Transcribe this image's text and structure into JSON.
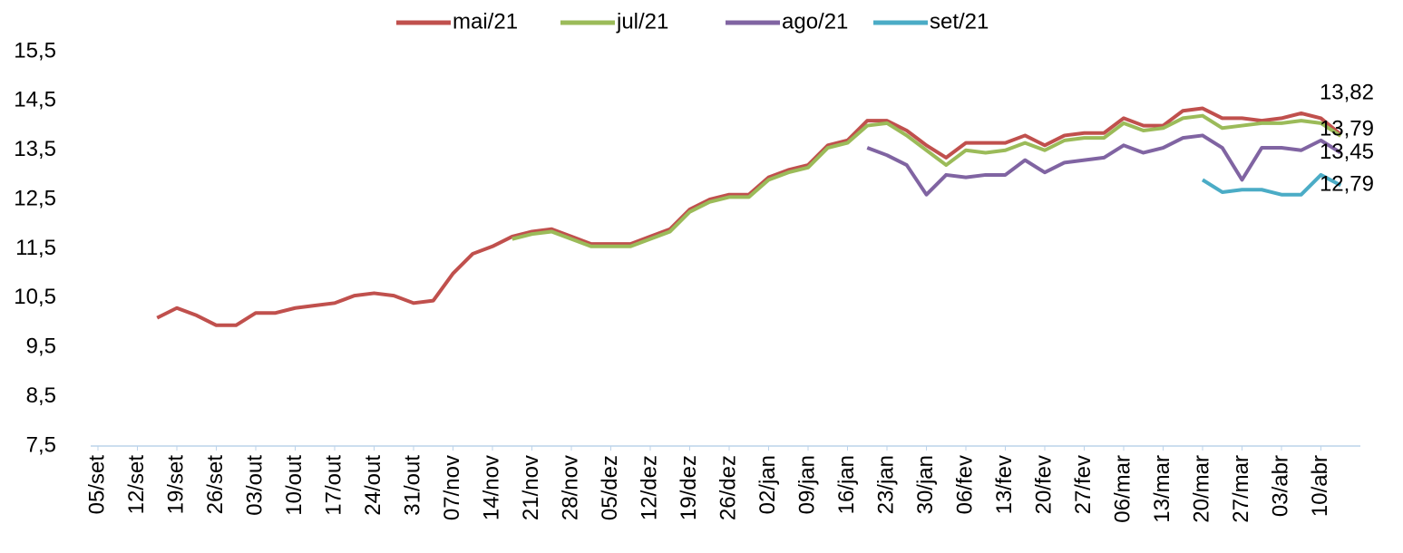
{
  "chart_data": {
    "type": "line",
    "categories": [
      "05/set",
      null,
      "12/set",
      null,
      "19/set",
      null,
      "26/set",
      null,
      "03/out",
      null,
      "10/out",
      null,
      "17/out",
      null,
      "24/out",
      null,
      "31/out",
      null,
      "07/nov",
      null,
      "14/nov",
      null,
      "21/nov",
      null,
      "28/nov",
      null,
      "05/dez",
      null,
      "12/dez",
      null,
      "19/dez",
      null,
      "26/dez",
      null,
      "02/jan",
      null,
      "09/jan",
      null,
      "16/jan",
      null,
      "23/jan",
      null,
      "30/jan",
      null,
      "06/fev",
      null,
      "13/fev",
      null,
      "20/fev",
      null,
      "27/fev",
      null,
      "06/mar",
      null,
      "13/mar",
      null,
      "20/mar",
      null,
      "27/mar",
      null,
      "03/abr",
      null,
      "10/abr",
      null
    ],
    "series": [
      {
        "name": "mai/21",
        "color": "#c0504d",
        "values": [
          null,
          null,
          null,
          10.1,
          10.3,
          10.15,
          9.95,
          9.95,
          10.2,
          10.2,
          10.3,
          10.35,
          10.4,
          10.55,
          10.6,
          10.55,
          10.4,
          10.45,
          11.0,
          11.4,
          11.55,
          11.75,
          11.85,
          11.9,
          11.75,
          11.6,
          11.6,
          11.6,
          11.75,
          11.9,
          12.3,
          12.5,
          12.6,
          12.6,
          12.95,
          13.1,
          13.2,
          13.6,
          13.7,
          14.1,
          14.1,
          13.9,
          13.6,
          13.35,
          13.65,
          13.65,
          13.65,
          13.8,
          13.6,
          13.8,
          13.85,
          13.85,
          14.15,
          14.0,
          14.0,
          14.3,
          14.35,
          14.15,
          14.15,
          14.1,
          14.15,
          14.25,
          14.15,
          13.82
        ],
        "value_labels": [
          null,
          null,
          null,
          null,
          null,
          null,
          null,
          null,
          null,
          null,
          null,
          null,
          null,
          null,
          null,
          null,
          null,
          null,
          null,
          null,
          null,
          null,
          null,
          null,
          null,
          null,
          null,
          null,
          null,
          null,
          null,
          null,
          null,
          null,
          null,
          null,
          null,
          null,
          null,
          null,
          null,
          null,
          null,
          null,
          null,
          null,
          null,
          null,
          null,
          null,
          null,
          null,
          null,
          null,
          null,
          null,
          null,
          null,
          null,
          null,
          null,
          null,
          null,
          "13,82"
        ]
      },
      {
        "name": "jul/21",
        "color": "#9bbb59",
        "values": [
          null,
          null,
          null,
          null,
          null,
          null,
          null,
          null,
          null,
          null,
          null,
          null,
          null,
          null,
          null,
          null,
          null,
          null,
          null,
          null,
          null,
          11.7,
          11.8,
          11.85,
          11.7,
          11.55,
          11.55,
          11.55,
          11.7,
          11.85,
          12.25,
          12.45,
          12.55,
          12.55,
          12.9,
          13.05,
          13.15,
          13.55,
          13.65,
          14.0,
          14.05,
          13.8,
          13.5,
          13.2,
          13.5,
          13.45,
          13.5,
          13.65,
          13.5,
          13.7,
          13.75,
          13.75,
          14.05,
          13.9,
          13.95,
          14.15,
          14.2,
          13.95,
          14.0,
          14.05,
          14.05,
          14.1,
          14.05,
          13.79
        ],
        "value_labels": [
          null,
          null,
          null,
          null,
          null,
          null,
          null,
          null,
          null,
          null,
          null,
          null,
          null,
          null,
          null,
          null,
          null,
          null,
          null,
          null,
          null,
          null,
          null,
          null,
          null,
          null,
          null,
          null,
          null,
          null,
          null,
          null,
          null,
          null,
          null,
          null,
          null,
          null,
          null,
          null,
          null,
          null,
          null,
          null,
          null,
          null,
          null,
          null,
          null,
          null,
          null,
          null,
          null,
          null,
          null,
          null,
          null,
          null,
          null,
          null,
          null,
          null,
          null,
          "13,79"
        ]
      },
      {
        "name": "ago/21",
        "color": "#8064a2",
        "values": [
          null,
          null,
          null,
          null,
          null,
          null,
          null,
          null,
          null,
          null,
          null,
          null,
          null,
          null,
          null,
          null,
          null,
          null,
          null,
          null,
          null,
          null,
          null,
          null,
          null,
          null,
          null,
          null,
          null,
          null,
          null,
          null,
          null,
          null,
          null,
          null,
          null,
          null,
          null,
          13.55,
          13.4,
          13.2,
          12.6,
          13.0,
          12.95,
          13.0,
          13.0,
          13.3,
          13.05,
          13.25,
          13.3,
          13.35,
          13.6,
          13.45,
          13.55,
          13.75,
          13.8,
          13.55,
          12.9,
          13.55,
          13.55,
          13.5,
          13.7,
          13.45
        ],
        "value_labels": [
          null,
          null,
          null,
          null,
          null,
          null,
          null,
          null,
          null,
          null,
          null,
          null,
          null,
          null,
          null,
          null,
          null,
          null,
          null,
          null,
          null,
          null,
          null,
          null,
          null,
          null,
          null,
          null,
          null,
          null,
          null,
          null,
          null,
          null,
          null,
          null,
          null,
          null,
          null,
          null,
          null,
          null,
          null,
          null,
          null,
          null,
          null,
          null,
          null,
          null,
          null,
          null,
          null,
          null,
          null,
          null,
          null,
          null,
          null,
          null,
          null,
          null,
          null,
          "13,45"
        ]
      },
      {
        "name": "set/21",
        "color": "#4bacc6",
        "values": [
          null,
          null,
          null,
          null,
          null,
          null,
          null,
          null,
          null,
          null,
          null,
          null,
          null,
          null,
          null,
          null,
          null,
          null,
          null,
          null,
          null,
          null,
          null,
          null,
          null,
          null,
          null,
          null,
          null,
          null,
          null,
          null,
          null,
          null,
          null,
          null,
          null,
          null,
          null,
          null,
          null,
          null,
          null,
          null,
          null,
          null,
          null,
          null,
          null,
          null,
          null,
          null,
          null,
          null,
          null,
          null,
          12.9,
          12.65,
          12.7,
          12.7,
          12.6,
          12.6,
          13.0,
          12.79
        ],
        "value_labels": [
          null,
          null,
          null,
          null,
          null,
          null,
          null,
          null,
          null,
          null,
          null,
          null,
          null,
          null,
          null,
          null,
          null,
          null,
          null,
          null,
          null,
          null,
          null,
          null,
          null,
          null,
          null,
          null,
          null,
          null,
          null,
          null,
          null,
          null,
          null,
          null,
          null,
          null,
          null,
          null,
          null,
          null,
          null,
          null,
          null,
          null,
          null,
          null,
          null,
          null,
          null,
          null,
          null,
          null,
          null,
          null,
          null,
          null,
          null,
          null,
          null,
          null,
          null,
          "12,79"
        ]
      }
    ],
    "ylim": [
      7.5,
      15.5
    ],
    "yticks": [
      {
        "value": 7.5,
        "label": "7,5"
      },
      {
        "value": 8.5,
        "label": "8,5"
      },
      {
        "value": 9.5,
        "label": "9,5"
      },
      {
        "value": 10.5,
        "label": "10,5"
      },
      {
        "value": 11.5,
        "label": "11,5"
      },
      {
        "value": 12.5,
        "label": "12,5"
      },
      {
        "value": 13.5,
        "label": "13,5"
      },
      {
        "value": 14.5,
        "label": "14,5"
      },
      {
        "value": 15.5,
        "label": "15,5"
      }
    ],
    "grid": false,
    "legend": "top"
  }
}
